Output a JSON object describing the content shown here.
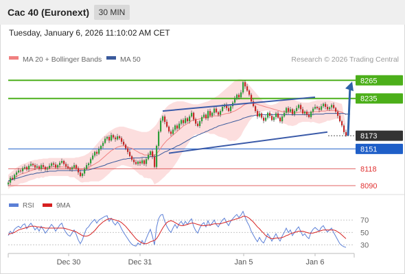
{
  "header": {
    "instrument": "Cac 40 (Euronext)",
    "timeframe": "30 MIN",
    "datetime": "Tuesday, January 6, 2026 11:10:02 AM CET"
  },
  "legend": {
    "ma20_label": "MA 20 + Bollinger Bands",
    "ma50_label": "MA 50",
    "credit": "Research © 2026 Trading Central",
    "colors": {
      "ma20": "#f08080",
      "ma50": "#3a5a9c",
      "band": "#fbd8d8"
    }
  },
  "chart_data": [
    {
      "type": "candlestick",
      "ylim": [
        8082,
        8287
      ],
      "x_ticks": [
        "Dec 30",
        "Dec 31",
        "Jan 5",
        "Jan 6"
      ],
      "levels": [
        {
          "label": "8265",
          "value": 8265,
          "color": "#4caf1a",
          "style": "resistance"
        },
        {
          "label": "8235",
          "value": 8235,
          "color": "#4caf1a",
          "style": "resistance"
        },
        {
          "label": "8173",
          "value": 8173,
          "color": "#333333",
          "style": "last-price"
        },
        {
          "label": "8151",
          "value": 8151,
          "color": "#1f5fc8",
          "style": "pivot"
        },
        {
          "label": "8118",
          "value": 8118,
          "color": "#e06060",
          "style": "support"
        },
        {
          "label": "8090",
          "value": 8090,
          "color": "#e06060",
          "style": "support"
        }
      ],
      "closes": [
        8095,
        8103,
        8101,
        8108,
        8112,
        8115,
        8114,
        8119,
        8121,
        8117,
        8123,
        8126,
        8124,
        8120,
        8122,
        8118,
        8124,
        8121,
        8117,
        8119,
        8123,
        8127,
        8125,
        8120,
        8124,
        8128,
        8131,
        8126,
        8122,
        8119,
        8117,
        8120,
        8124,
        8119,
        8112,
        8106,
        8110,
        8118,
        8124,
        8127,
        8134,
        8140,
        8146,
        8143,
        8151,
        8156,
        8161,
        8168,
        8171,
        8165,
        8174,
        8170,
        8167,
        8172,
        8169,
        8163,
        8158,
        8152,
        8146,
        8139,
        8133,
        8129,
        8126,
        8130,
        8127,
        8132,
        8126,
        8134,
        8141,
        8147,
        8138,
        8121,
        8156,
        8180,
        8198,
        8205,
        8196,
        8188,
        8180,
        8176,
        8183,
        8190,
        8185,
        8193,
        8199,
        8194,
        8202,
        8197,
        8205,
        8211,
        8200,
        8193,
        8189,
        8197,
        8204,
        8208,
        8202,
        8214,
        8206,
        8211,
        8218,
        8212,
        8208,
        8214,
        8221,
        8225,
        8219,
        8214,
        8222,
        8228,
        8235,
        8241,
        8237,
        8245,
        8262,
        8255,
        8248,
        8241,
        8230,
        8222,
        8214,
        8205,
        8210,
        8203,
        8198,
        8203,
        8211,
        8206,
        8199,
        8204,
        8210,
        8203,
        8197,
        8205,
        8211,
        8219,
        8213,
        8217,
        8209,
        8214,
        8219,
        8224,
        8217,
        8210,
        8213,
        8208,
        8204,
        8213,
        8218,
        8221,
        8219,
        8216,
        8222,
        8226,
        8221,
        8217,
        8220,
        8224,
        8219,
        8213,
        8206,
        8197,
        8190,
        8179,
        8173
      ],
      "ma20": [
        8096,
        8099,
        8101,
        8103,
        8105,
        8107,
        8109,
        8110,
        8111,
        8112,
        8114,
        8115,
        8116,
        8117,
        8118,
        8118,
        8119,
        8119,
        8120,
        8120,
        8121,
        8121,
        8121,
        8121,
        8121,
        8121,
        8121,
        8121,
        8121,
        8121,
        8120,
        8120,
        8120,
        8119,
        8118,
        8117,
        8117,
        8118,
        8119,
        8120,
        8122,
        8124,
        8126,
        8128,
        8130,
        8133,
        8136,
        8139,
        8142,
        8145,
        8148,
        8150,
        8152,
        8154,
        8155,
        8156,
        8156,
        8155,
        8154,
        8153,
        8152,
        8150,
        8148,
        8146,
        8144,
        8143,
        8141,
        8141,
        8141,
        8142,
        8142,
        8140,
        8143,
        8147,
        8152,
        8157,
        8161,
        8165,
        8168,
        8171,
        8174,
        8177,
        8180,
        8183,
        8186,
        8189,
        8191,
        8193,
        8195,
        8198,
        8199,
        8200,
        8200,
        8201,
        8202,
        8203,
        8203,
        8204,
        8204,
        8205,
        8206,
        8206,
        8206,
        8207,
        8208,
        8209,
        8210,
        8210,
        8211,
        8213,
        8214,
        8216,
        8218,
        8220,
        8223,
        8225,
        8226,
        8227,
        8227,
        8227,
        8226,
        8225,
        8224,
        8223,
        8222,
        8221,
        8220,
        8219,
        8218,
        8217,
        8216,
        8215,
        8214,
        8213,
        8213,
        8213,
        8212,
        8212,
        8211,
        8211,
        8211,
        8212,
        8212,
        8212,
        8212,
        8212,
        8212,
        8212,
        8213,
        8213,
        8213,
        8213,
        8214,
        8214,
        8214,
        8215,
        8215,
        8215,
        8215,
        8215,
        8214,
        8213,
        8212,
        8210,
        8208
      ],
      "ma50": [
        8098,
        8099,
        8100,
        8101,
        8102,
        8103,
        8104,
        8105,
        8106,
        8107,
        8108,
        8109,
        8109,
        8110,
        8111,
        8111,
        8112,
        8112,
        8113,
        8113,
        8114,
        8114,
        8114,
        8114,
        8115,
        8115,
        8115,
        8115,
        8115,
        8115,
        8115,
        8115,
        8115,
        8115,
        8115,
        8115,
        8115,
        8115,
        8116,
        8116,
        8117,
        8118,
        8119,
        8120,
        8121,
        8122,
        8123,
        8124,
        8126,
        8127,
        8128,
        8129,
        8130,
        8131,
        8132,
        8133,
        8134,
        8134,
        8135,
        8135,
        8136,
        8136,
        8136,
        8136,
        8136,
        8137,
        8137,
        8137,
        8137,
        8138,
        8138,
        8138,
        8139,
        8140,
        8142,
        8144,
        8146,
        8147,
        8149,
        8151,
        8152,
        8154,
        8156,
        8157,
        8159,
        8161,
        8163,
        8165,
        8167,
        8169,
        8171,
        8172,
        8174,
        8175,
        8177,
        8178,
        8180,
        8181,
        8183,
        8184,
        8186,
        8187,
        8189,
        8190,
        8191,
        8192,
        8193,
        8194,
        8195,
        8196,
        8197,
        8198,
        8199,
        8200,
        8202,
        8203,
        8204,
        8205,
        8206,
        8206,
        8207,
        8207,
        8208,
        8208,
        8208,
        8208,
        8208,
        8208,
        8208,
        8208,
        8208,
        8208,
        8208,
        8208,
        8208,
        8208,
        8208,
        8208,
        8208,
        8208,
        8208,
        8208,
        8208,
        8208,
        8208,
        8208,
        8208,
        8208,
        8208,
        8209,
        8209,
        8209,
        8209,
        8209,
        8210,
        8210,
        8210,
        8210,
        8210,
        8210,
        8210,
        8210,
        8210,
        8210,
        8209,
        8209,
        8209
      ],
      "band_upper": [
        8108,
        8111,
        8114,
        8117,
        8120,
        8122,
        8124,
        8126,
        8127,
        8128,
        8130,
        8131,
        8132,
        8133,
        8133,
        8134,
        8134,
        8135,
        8135,
        8135,
        8136,
        8136,
        8136,
        8136,
        8136,
        8136,
        8136,
        8136,
        8136,
        8136,
        8136,
        8136,
        8136,
        8137,
        8137,
        8138,
        8139,
        8140,
        8142,
        8144,
        8147,
        8151,
        8155,
        8159,
        8163,
        8167,
        8171,
        8174,
        8177,
        8180,
        8182,
        8184,
        8186,
        8187,
        8188,
        8188,
        8188,
        8187,
        8186,
        8185,
        8184,
        8183,
        8182,
        8181,
        8180,
        8179,
        8179,
        8179,
        8180,
        8182,
        8185,
        8188,
        8192,
        8198,
        8205,
        8212,
        8217,
        8221,
        8224,
        8226,
        8228,
        8229,
        8230,
        8230,
        8230,
        8230,
        8229,
        8228,
        8227,
        8226,
        8225,
        8225,
        8225,
        8226,
        8227,
        8228,
        8229,
        8230,
        8232,
        8234,
        8236,
        8238,
        8240,
        8243,
        8246,
        8249,
        8252,
        8255,
        8258,
        8261,
        8264,
        8266,
        8267,
        8267,
        8266,
        8264,
        8261,
        8257,
        8253,
        8249,
        8245,
        8241,
        8237,
        8233,
        8230,
        8227,
        8225,
        8224,
        8224,
        8225,
        8226,
        8228,
        8230,
        8232,
        8233,
        8234,
        8234,
        8234,
        8233,
        8232,
        8231,
        8230,
        8229,
        8228,
        8228,
        8228,
        8228,
        8229,
        8230,
        8231,
        8232,
        8232,
        8232,
        8232,
        8232,
        8232,
        8232,
        8231,
        8230,
        8229,
        8228,
        8227,
        8226
      ],
      "band_lower": [
        8084,
        8087,
        8088,
        8089,
        8090,
        8092,
        8094,
        8094,
        8095,
        8096,
        8098,
        8099,
        8100,
        8101,
        8103,
        8102,
        8104,
        8103,
        8105,
        8105,
        8106,
        8106,
        8106,
        8106,
        8106,
        8106,
        8106,
        8106,
        8106,
        8106,
        8104,
        8104,
        8104,
        8101,
        8099,
        8096,
        8095,
        8096,
        8096,
        8096,
        8097,
        8097,
        8097,
        8097,
        8097,
        8099,
        8101,
        8104,
        8107,
        8110,
        8114,
        8116,
        8118,
        8121,
        8122,
        8124,
        8124,
        8123,
        8122,
        8121,
        8120,
        8117,
        8114,
        8111,
        8108,
        8107,
        8103,
        8103,
        8102,
        8102,
        8099,
        8092,
        8094,
        8096,
        8099,
        8102,
        8105,
        8109,
        8112,
        8116,
        8120,
        8125,
        8130,
        8136,
        8142,
        8148,
        8153,
        8158,
        8163,
        8170,
        8173,
        8175,
        8175,
        8176,
        8177,
        8178,
        8177,
        8178,
        8176,
        8176,
        8176,
        8174,
        8172,
        8171,
        8170,
        8169,
        8168,
        8165,
        8164,
        8165,
        8164,
        8166,
        8169,
        8173,
        8180,
        8186,
        8191,
        8197,
        8201,
        8205,
        8207,
        8209,
        8211,
        8213,
        8214,
        8215,
        8215,
        8214,
        8212,
        8209,
        8206,
        8202,
        8198,
        8194,
        8193,
        8192,
        8190,
        8190,
        8189,
        8190,
        8191,
        8194,
        8195,
        8196,
        8196,
        8196,
        8196,
        8195,
        8196,
        8195,
        8194,
        8193,
        8194,
        8195,
        8196,
        8198,
        8198,
        8199,
        8200,
        8201,
        8201,
        8200,
        8198,
        8194,
        8190
      ]
    },
    {
      "type": "line",
      "title": "RSI",
      "ylim": [
        25,
        78
      ],
      "y_ticks": [
        70,
        50,
        30
      ],
      "series": [
        {
          "name": "RSI",
          "color": "#5b7fd6",
          "values": [
            45,
            52,
            48,
            55,
            58,
            60,
            57,
            62,
            64,
            56,
            61,
            65,
            60,
            54,
            58,
            52,
            60,
            55,
            49,
            53,
            58,
            63,
            59,
            52,
            57,
            62,
            65,
            56,
            50,
            46,
            44,
            49,
            54,
            47,
            38,
            32,
            38,
            48,
            56,
            59,
            64,
            68,
            71,
            65,
            70,
            72,
            74,
            76,
            77,
            68,
            73,
            66,
            62,
            67,
            63,
            56,
            50,
            45,
            40,
            35,
            31,
            29,
            28,
            33,
            30,
            37,
            31,
            40,
            48,
            55,
            44,
            30,
            58,
            72,
            78,
            79,
            68,
            60,
            54,
            50,
            57,
            63,
            57,
            64,
            68,
            62,
            68,
            63,
            68,
            72,
            60,
            53,
            49,
            57,
            63,
            66,
            59,
            69,
            61,
            65,
            70,
            63,
            59,
            65,
            70,
            73,
            66,
            61,
            68,
            72,
            76,
            79,
            74,
            78,
            84,
            75,
            67,
            61,
            52,
            46,
            40,
            35,
            42,
            36,
            33,
            40,
            48,
            43,
            36,
            42,
            48,
            41,
            36,
            44,
            50,
            57,
            50,
            54,
            45,
            50,
            55,
            59,
            52,
            45,
            48,
            43,
            40,
            50,
            55,
            58,
            55,
            52,
            58,
            61,
            55,
            51,
            54,
            57,
            50,
            44,
            38,
            32,
            29,
            27,
            26
          ]
        },
        {
          "name": "9MA",
          "color": "#d62020",
          "values": [
            47,
            48,
            49,
            50,
            52,
            54,
            55,
            56,
            57,
            58,
            59,
            60,
            60,
            60,
            59,
            59,
            58,
            58,
            57,
            57,
            57,
            57,
            57,
            57,
            57,
            57,
            57,
            57,
            56,
            55,
            54,
            53,
            52,
            51,
            49,
            47,
            45,
            44,
            44,
            45,
            47,
            50,
            53,
            57,
            61,
            64,
            67,
            69,
            71,
            72,
            72,
            71,
            70,
            69,
            68,
            66,
            63,
            60,
            56,
            52,
            48,
            44,
            40,
            37,
            35,
            33,
            32,
            32,
            33,
            35,
            36,
            37,
            40,
            45,
            51,
            57,
            62,
            66,
            68,
            69,
            68,
            66,
            64,
            62,
            61,
            61,
            62,
            63,
            64,
            65,
            65,
            64,
            63,
            62,
            61,
            61,
            61,
            62,
            62,
            63,
            64,
            64,
            64,
            64,
            65,
            66,
            67,
            68,
            69,
            70,
            71,
            72,
            73,
            74,
            76,
            76,
            75,
            73,
            70,
            67,
            63,
            59,
            56,
            52,
            49,
            45,
            43,
            41,
            40,
            40,
            41,
            41,
            41,
            42,
            43,
            45,
            46,
            48,
            49,
            50,
            51,
            52,
            52,
            52,
            51,
            50,
            49,
            49,
            49,
            50,
            51,
            52,
            53,
            54,
            54,
            54,
            54,
            54,
            54,
            53,
            51,
            49,
            46,
            43,
            40
          ]
        }
      ]
    }
  ]
}
